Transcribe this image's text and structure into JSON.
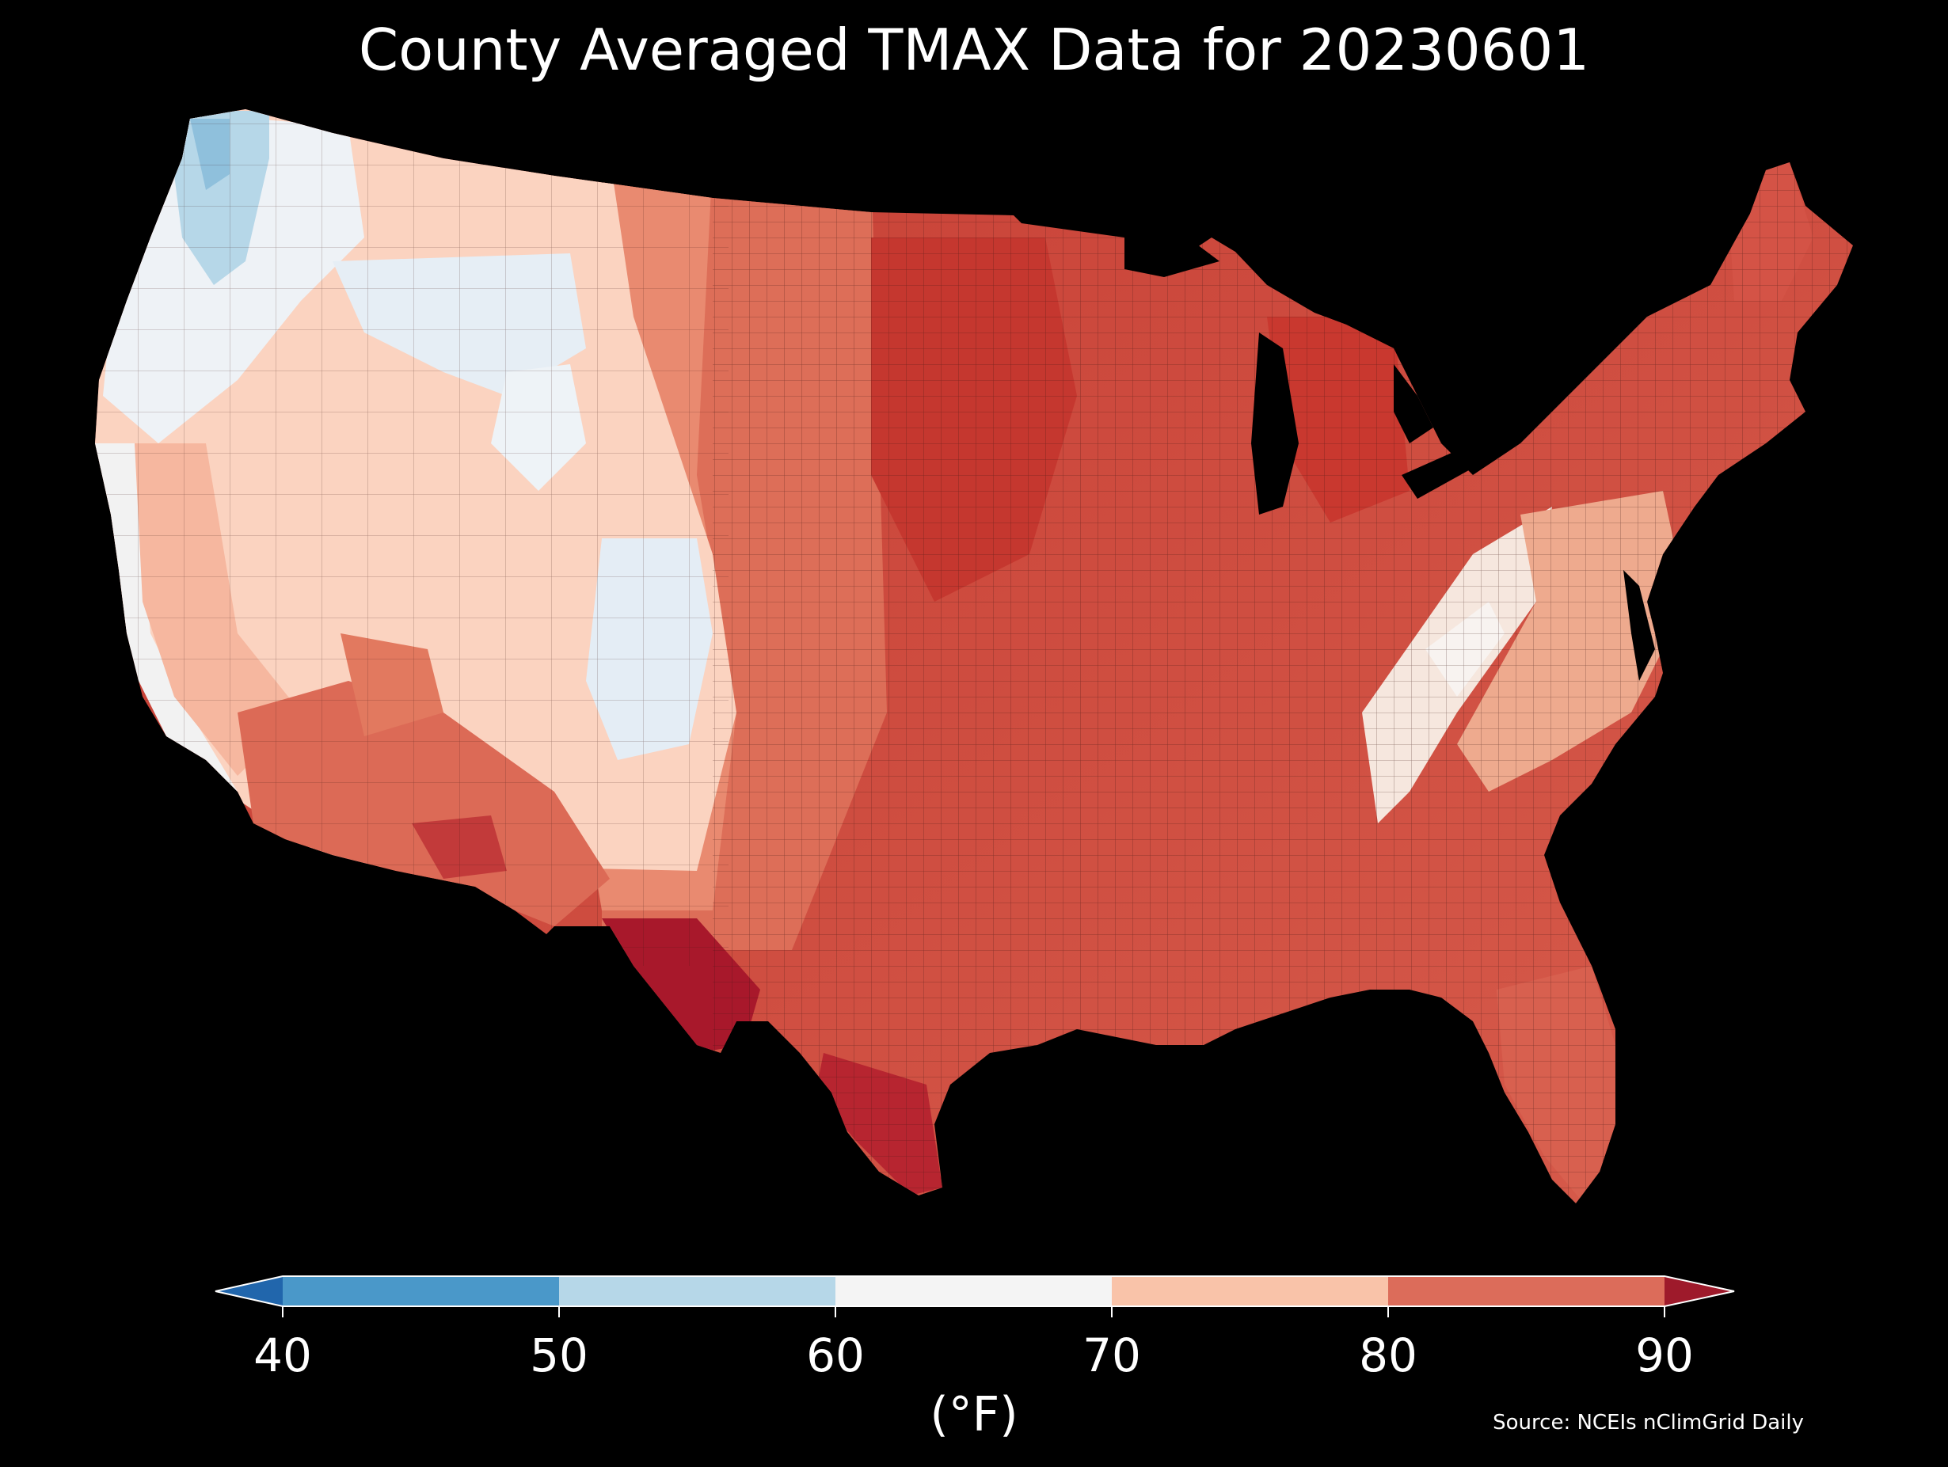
{
  "title": "County Averaged TMAX Data for 20230601",
  "colorbar": {
    "ticks": [
      "40",
      "50",
      "60",
      "70",
      "80",
      "90"
    ],
    "unit": "(°F)",
    "bins": [
      {
        "range": "<40",
        "color": "#2166ac"
      },
      {
        "range": "40-50",
        "color": "#4a98c9"
      },
      {
        "range": "50-60",
        "color": "#b6d7e8"
      },
      {
        "range": "60-70",
        "color": "#f4f4f4"
      },
      {
        "range": "70-80",
        "color": "#f9c3a9"
      },
      {
        "range": "80-90",
        "color": "#dc6c5a"
      },
      {
        "range": ">90",
        "color": "#9e1a2b"
      }
    ]
  },
  "source": "Source: NCEIs nClimGrid Daily",
  "map": {
    "region": "Contiguous United States counties",
    "variable": "TMAX",
    "date": "20230601",
    "regions": [
      {
        "name": "pacific-northwest-coast",
        "value_range": "50-60",
        "color": "#b6d7e8"
      },
      {
        "name": "northern-rockies",
        "value_range": "60-70",
        "color": "#eef3f7"
      },
      {
        "name": "great-basin",
        "value_range": "70-80",
        "color": "#fbdccd"
      },
      {
        "name": "colorado-rockies",
        "value_range": "60-70",
        "color": "#e6eef5"
      },
      {
        "name": "desert-southwest",
        "value_range": "80-90",
        "color": "#d9604d"
      },
      {
        "name": "west-texas-big-bend",
        "value_range": ">90",
        "color": "#a8182b"
      },
      {
        "name": "great-plains",
        "value_range": "80-90",
        "color": "#db6b55"
      },
      {
        "name": "upper-midwest",
        "value_range": "80-90",
        "color": "#c8392f"
      },
      {
        "name": "appalachians",
        "value_range": "60-70",
        "color": "#f6e6dc"
      },
      {
        "name": "northeast",
        "value_range": "80-90",
        "color": "#dd6f5c"
      },
      {
        "name": "southeast",
        "value_range": "80-90",
        "color": "#d8604f"
      },
      {
        "name": "south-texas",
        "value_range": ">90",
        "color": "#b72530"
      }
    ]
  }
}
